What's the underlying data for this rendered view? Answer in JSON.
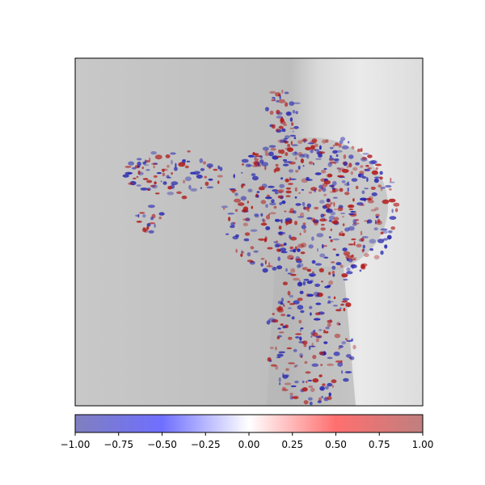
{
  "chart_data": {
    "type": "heatmap",
    "title": "",
    "xlabel": "",
    "ylabel": "",
    "description_values": {
      "background": "grayscale image",
      "overlay": "diverging attribution map"
    },
    "colorbar": {
      "min": -1.0,
      "max": 1.0,
      "ticks": [
        -1.0,
        -0.75,
        -0.5,
        -0.25,
        0.0,
        0.25,
        0.5,
        0.75,
        1.0
      ],
      "tick_labels": [
        "−1.00",
        "−0.75",
        "−0.50",
        "−0.25",
        "0.00",
        "0.25",
        "0.50",
        "0.75",
        "1.00"
      ],
      "colormap": [
        "#7f7fbf",
        "#6f6fff",
        "#ffffff",
        "#ff6f6f",
        "#bf7f7f"
      ]
    },
    "grid": false,
    "legend": "none"
  }
}
